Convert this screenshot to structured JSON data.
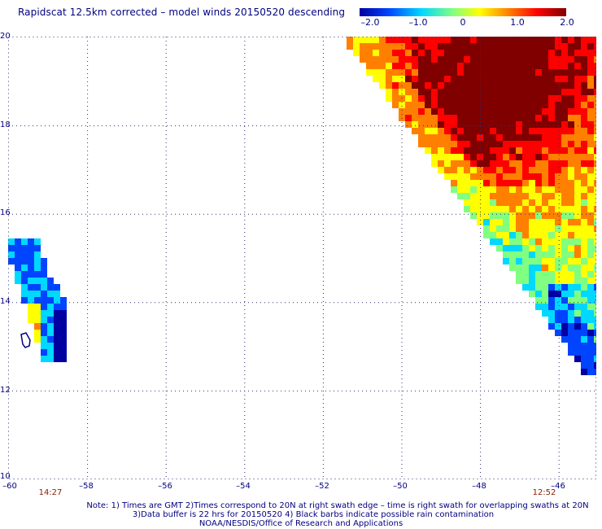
{
  "title": "Rapidscat 12.5km corrected – model winds 20150520 descending",
  "colorbar": {
    "labels": [
      "–2.0",
      "–1.0",
      "0",
      "1.0",
      "2.0"
    ],
    "min": -2.0,
    "max": 2.0,
    "colors": [
      "#0000a0",
      "#0044ff",
      "#00d8ff",
      "#80ff80",
      "#ffff00",
      "#ff8000",
      "#ff0000",
      "#800000"
    ]
  },
  "map": {
    "lon_range": [
      -60,
      -45
    ],
    "lat_range": [
      10,
      20
    ],
    "x_ticks": [
      "–60",
      "–58",
      "–56",
      "–54",
      "–52",
      "–50",
      "–48",
      "–46"
    ],
    "y_ticks": [
      "20",
      "18",
      "16",
      "14",
      "12",
      "10"
    ],
    "grid": "dotted",
    "land_outline": "small island near 13.2N, 59.6W"
  },
  "times": {
    "left": "14:27",
    "right": "12:52"
  },
  "notes": {
    "line1": "Note: 1) Times are GMT 2)Times correspond to 20N at right swath edge – time is right swath for overlapping swaths at 20N",
    "line2": "3)Data buffer is 22 hrs for 20150520 4) Black barbs indicate possible rain contamination",
    "line3": "NOAA/NESDIS/Office of Research and Applications"
  }
}
